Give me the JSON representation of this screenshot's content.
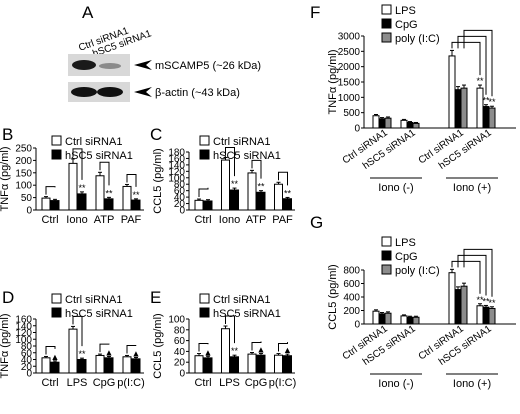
{
  "panel_labels": {
    "A": "A",
    "B": "B",
    "C": "C",
    "D": "D",
    "E": "E",
    "F": "F",
    "G": "G"
  },
  "blot": {
    "lanes": [
      "Ctrl siRNA1",
      "hSC5 siRNA1"
    ],
    "bands": [
      "mSCAMP5 (~26 kDa)",
      "β-actin (~43 kDa)"
    ]
  },
  "colors": {
    "ctrl": "#ffffff",
    "hsc5": "#000000",
    "lps": "#ffffff",
    "cpg": "#000000",
    "polyic": "#8c8c8c"
  },
  "chart_data": [
    {
      "id": "B",
      "type": "bar",
      "legend": [
        "Ctrl siRNA1",
        "hSC5 siRNA1"
      ],
      "categories": [
        "Ctrl",
        "Iono",
        "ATP",
        "PAF"
      ],
      "series": [
        {
          "name": "Ctrl siRNA1",
          "values": [
            48,
            188,
            138,
            95
          ]
        },
        {
          "name": "hSC5 siRNA1",
          "values": [
            38,
            65,
            45,
            40
          ]
        }
      ],
      "errors": [
        [
          6,
          18,
          14,
          8
        ],
        [
          5,
          8,
          6,
          5
        ]
      ],
      "ylabel": "TNFα (pg/ml)",
      "ylim": [
        0,
        250
      ],
      "yticks": [
        0,
        50,
        100,
        150,
        200,
        250
      ],
      "sig": [
        [
          "",
          ""
        ],
        [
          "",
          "**"
        ],
        [
          "",
          "**"
        ],
        [
          "",
          "**"
        ]
      ]
    },
    {
      "id": "C",
      "type": "bar",
      "legend": [
        "Ctrl siRNA1",
        "hSC5 siRNA1"
      ],
      "categories": [
        "Ctrl",
        "Iono",
        "ATP",
        "PAF"
      ],
      "series": [
        {
          "name": "Ctrl siRNA1",
          "values": [
            30,
            155,
            115,
            80
          ]
        },
        {
          "name": "hSC5 siRNA1",
          "values": [
            28,
            62,
            55,
            35
          ]
        }
      ],
      "errors": [
        [
          4,
          8,
          8,
          6
        ],
        [
          4,
          6,
          5,
          4
        ]
      ],
      "ylabel": "CCL5 (pg/ml)",
      "ylim": [
        0,
        180
      ],
      "yticks": [
        0,
        20,
        40,
        60,
        80,
        100,
        120,
        140,
        160,
        180
      ],
      "sig": [
        [
          "",
          ""
        ],
        [
          "",
          "**"
        ],
        [
          "",
          "**"
        ],
        [
          "",
          "**"
        ]
      ]
    },
    {
      "id": "D",
      "type": "bar",
      "legend": [
        "Ctrl siRNA1",
        "hSC5 siRNA1"
      ],
      "categories": [
        "Ctrl",
        "LPS",
        "CpG",
        "p(I:C)"
      ],
      "series": [
        {
          "name": "Ctrl siRNA1",
          "values": [
            45,
            130,
            52,
            48
          ]
        },
        {
          "name": "hSC5 siRNA1",
          "values": [
            32,
            40,
            45,
            42
          ]
        }
      ],
      "errors": [
        [
          4,
          8,
          4,
          4
        ],
        [
          4,
          4,
          4,
          4
        ]
      ],
      "ylabel": "TNFα (pg/ml)",
      "ylim": [
        0,
        160
      ],
      "yticks": [
        0,
        20,
        40,
        60,
        80,
        100,
        120,
        140,
        160
      ],
      "sig": [
        [
          "",
          "▲"
        ],
        [
          "",
          "**"
        ],
        [
          "",
          "▲"
        ],
        [
          "",
          "▲"
        ]
      ]
    },
    {
      "id": "E",
      "type": "bar",
      "legend": [
        "Ctrl siRNA1",
        "hSC5 siRNA1"
      ],
      "categories": [
        "Ctrl",
        "LPS",
        "CpG",
        "p(I:C)"
      ],
      "series": [
        {
          "name": "Ctrl siRNA1",
          "values": [
            32,
            82,
            35,
            33
          ]
        },
        {
          "name": "hSC5 siRNA1",
          "values": [
            28,
            30,
            33,
            32
          ]
        }
      ],
      "errors": [
        [
          4,
          5,
          3,
          3
        ],
        [
          3,
          3,
          3,
          3
        ]
      ],
      "ylabel": "CCL5 (pg/ml)",
      "ylim": [
        0,
        100
      ],
      "yticks": [
        0,
        20,
        40,
        60,
        80,
        100
      ],
      "sig": [
        [
          "",
          "▲"
        ],
        [
          "",
          "**"
        ],
        [
          "",
          "▲"
        ],
        [
          "",
          "▲"
        ]
      ]
    },
    {
      "id": "F",
      "type": "bar",
      "legend": [
        "LPS",
        "CpG",
        "poly (I:C)"
      ],
      "categories": [
        "Ctrl siRNA1",
        "hSC5 siRNA1",
        "Ctrl siRNA1",
        "hSC5 siRNA1"
      ],
      "groups": [
        "Iono (-)",
        "Iono (+)"
      ],
      "series": [
        {
          "name": "LPS",
          "values": [
            400,
            250,
            2350,
            1300
          ]
        },
        {
          "name": "CpG",
          "values": [
            300,
            180,
            1250,
            700
          ]
        },
        {
          "name": "poly (I:C)",
          "values": [
            320,
            150,
            1300,
            650
          ]
        }
      ],
      "errors": [
        [
          40,
          30,
          180,
          100
        ],
        [
          40,
          30,
          100,
          60
        ],
        [
          40,
          30,
          100,
          60
        ]
      ],
      "ylabel": "TNFα (pg/ml)",
      "ylim": [
        0,
        3000
      ],
      "yticks": [
        0,
        500,
        1000,
        1500,
        2000,
        2500,
        3000
      ],
      "sig": [
        [
          "",
          "",
          ""
        ],
        [
          "",
          "",
          ""
        ],
        [
          "",
          "",
          ""
        ],
        [
          "**",
          "**",
          "**"
        ]
      ]
    },
    {
      "id": "G",
      "type": "bar",
      "legend": [
        "LPS",
        "CpG",
        "poly (I:C)"
      ],
      "categories": [
        "Ctrl siRNA1",
        "hSC5 siRNA1",
        "Ctrl siRNA1",
        "hSC5 siRNA1"
      ],
      "groups": [
        "Iono (-)",
        "Iono (+)"
      ],
      "series": [
        {
          "name": "LPS",
          "values": [
            190,
            120,
            760,
            270
          ]
        },
        {
          "name": "CpG",
          "values": [
            150,
            100,
            510,
            250
          ]
        },
        {
          "name": "poly (I:C)",
          "values": [
            160,
            100,
            560,
            230
          ]
        }
      ],
      "errors": [
        [
          20,
          15,
          50,
          30
        ],
        [
          20,
          15,
          40,
          25
        ],
        [
          20,
          15,
          45,
          25
        ]
      ],
      "ylabel": "CCL5 (pg/ml)",
      "ylim": [
        0,
        800
      ],
      "yticks": [
        0,
        200,
        400,
        600,
        800
      ],
      "sig": [
        [
          "",
          "",
          ""
        ],
        [
          "",
          "",
          ""
        ],
        [
          "",
          "",
          ""
        ],
        [
          "**",
          "**",
          "**"
        ]
      ]
    }
  ]
}
